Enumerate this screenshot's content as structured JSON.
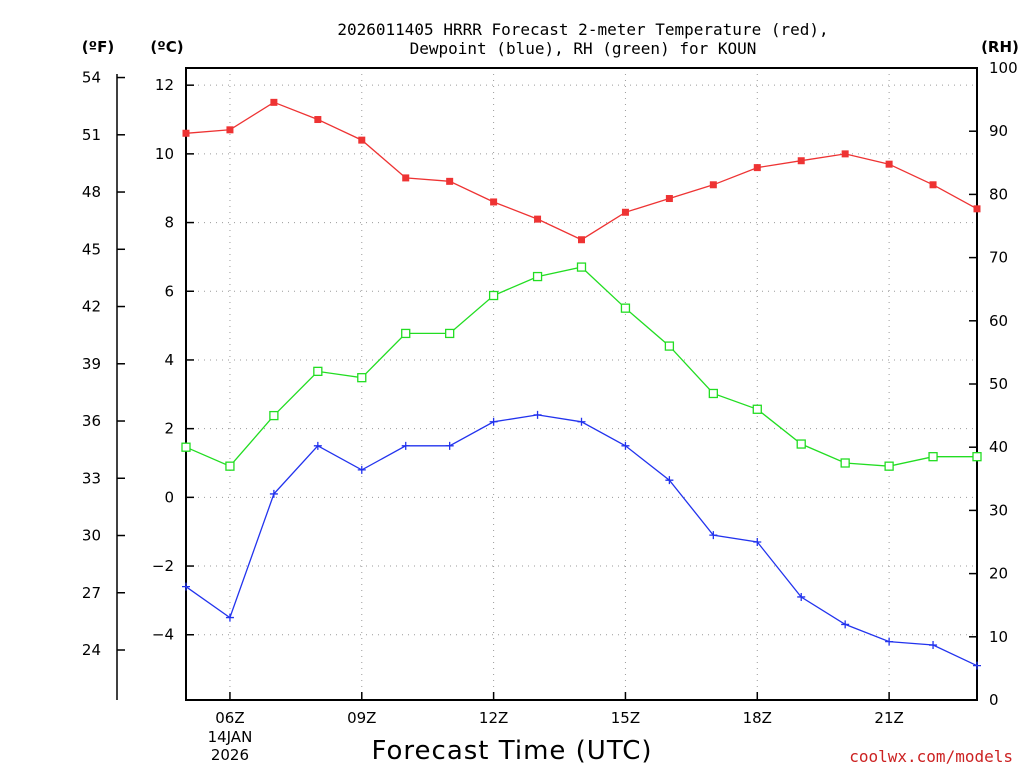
{
  "chart_data": {
    "type": "line",
    "title_lines": [
      "2026011405 HRRR Forecast 2-meter Temperature (red),",
      "Dewpoint (blue), RH (green) for KOUN"
    ],
    "xlabel": "Forecast Time (UTC)",
    "credit": "coolwx.com/models",
    "units": {
      "f": "(ºF)",
      "c": "(ºC)",
      "rh": "(RH)"
    },
    "x_hours": [
      5,
      6,
      7,
      8,
      9,
      10,
      11,
      12,
      13,
      14,
      15,
      16,
      17,
      18,
      19,
      20,
      21,
      22,
      23
    ],
    "xlim": [
      5,
      23
    ],
    "x_ticks": [
      {
        "hour": 6,
        "label": "06Z",
        "sub": [
          "14JAN",
          "2026"
        ]
      },
      {
        "hour": 9,
        "label": "09Z",
        "sub": []
      },
      {
        "hour": 12,
        "label": "12Z",
        "sub": []
      },
      {
        "hour": 15,
        "label": "15Z",
        "sub": []
      },
      {
        "hour": 18,
        "label": "18Z",
        "sub": []
      },
      {
        "hour": 21,
        "label": "21Z",
        "sub": []
      }
    ],
    "c_range": [
      -5.9,
      12.5
    ],
    "c_ticks": [
      {
        "value": 12,
        "label": "12"
      },
      {
        "value": 10,
        "label": "10"
      },
      {
        "value": 8,
        "label": "8"
      },
      {
        "value": 6,
        "label": "6"
      },
      {
        "value": 4,
        "label": "4"
      },
      {
        "value": 2,
        "label": "2"
      },
      {
        "value": 0,
        "label": "0"
      },
      {
        "value": -2,
        "label": "−2"
      },
      {
        "value": -4,
        "label": "−4"
      }
    ],
    "f_ticks": [
      {
        "value": 54,
        "label": "54"
      },
      {
        "value": 51,
        "label": "51"
      },
      {
        "value": 48,
        "label": "48"
      },
      {
        "value": 45,
        "label": "45"
      },
      {
        "value": 42,
        "label": "42"
      },
      {
        "value": 39,
        "label": "39"
      },
      {
        "value": 36,
        "label": "36"
      },
      {
        "value": 33,
        "label": "33"
      },
      {
        "value": 30,
        "label": "30"
      },
      {
        "value": 27,
        "label": "27"
      },
      {
        "value": 24,
        "label": "24"
      }
    ],
    "rh_range": [
      0,
      100
    ],
    "rh_ticks": [
      {
        "value": 100,
        "label": "100"
      },
      {
        "value": 90,
        "label": "90"
      },
      {
        "value": 80,
        "label": "80"
      },
      {
        "value": 70,
        "label": "70"
      },
      {
        "value": 60,
        "label": "60"
      },
      {
        "value": 50,
        "label": "50"
      },
      {
        "value": 40,
        "label": "40"
      },
      {
        "value": 30,
        "label": "30"
      },
      {
        "value": 20,
        "label": "20"
      },
      {
        "value": 10,
        "label": "10"
      },
      {
        "value": 0,
        "label": "0"
      }
    ],
    "series": [
      {
        "name": "Temperature",
        "axis": "c",
        "color": "#ee3333",
        "marker": "filled-square",
        "values": [
          10.6,
          10.7,
          11.5,
          11.0,
          10.4,
          9.3,
          9.2,
          8.6,
          8.1,
          7.5,
          8.3,
          8.7,
          9.1,
          9.6,
          9.8,
          10.0,
          9.7,
          9.1,
          8.4
        ]
      },
      {
        "name": "Dewpoint",
        "axis": "c",
        "color": "#2233ee",
        "marker": "plus",
        "values": [
          -2.6,
          -3.5,
          0.1,
          1.5,
          0.8,
          1.5,
          1.5,
          2.2,
          2.4,
          2.2,
          1.5,
          0.5,
          -1.1,
          -1.3,
          -2.9,
          -3.7,
          -4.2,
          -4.3,
          -4.9
        ]
      },
      {
        "name": "RH",
        "axis": "rh",
        "color": "#22dd22",
        "marker": "open-square",
        "values": [
          40,
          37,
          45,
          52,
          51,
          58,
          58,
          64,
          67,
          68.5,
          62,
          56,
          48.5,
          46,
          40.5,
          37.5,
          37,
          38.5,
          38.5
        ]
      }
    ]
  }
}
